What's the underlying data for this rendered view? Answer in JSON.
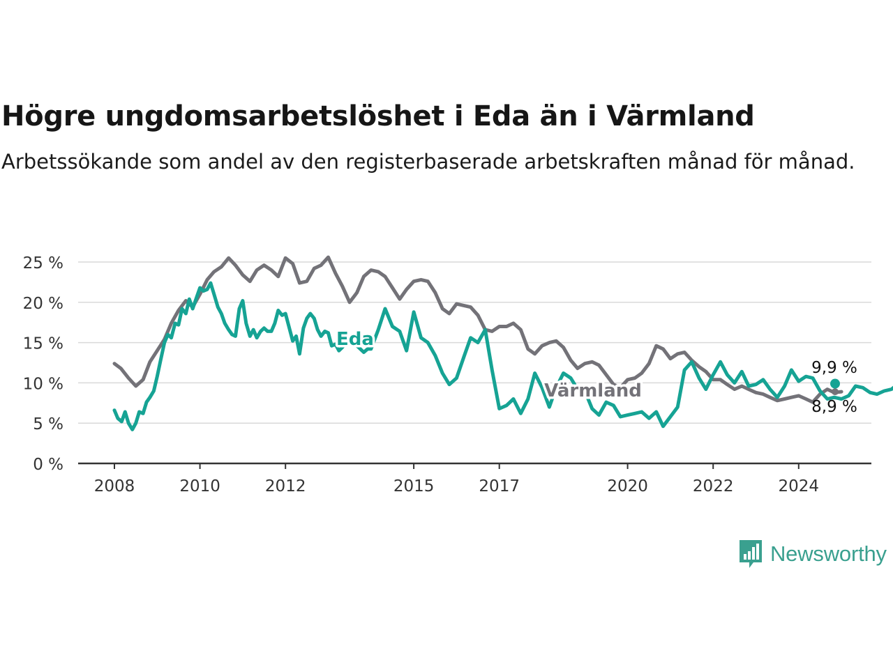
{
  "header": {
    "title": "Högre ungdomsarbetslöshet i Eda än i Värmland",
    "subtitle": "Arbetssökande som andel av den registerbaserade arbetskraften månad för månad."
  },
  "brand": {
    "name": "Newsworthy",
    "color": "#3aa08f",
    "icon": "bar-chart-speech-bubble-icon"
  },
  "chart_data": {
    "type": "line",
    "x_ticks": [
      {
        "label": "2008",
        "value": 2008.0
      },
      {
        "label": "2010",
        "value": 2010.0
      },
      {
        "label": "2012",
        "value": 2012.0
      },
      {
        "label": "2015",
        "value": 2015.0
      },
      {
        "label": "2017",
        "value": 2017.0
      },
      {
        "label": "2020",
        "value": 2020.0
      },
      {
        "label": "2022",
        "value": 2022.0
      },
      {
        "label": "2024",
        "value": 2024.0
      }
    ],
    "y_ticks": [
      {
        "label": "0 %",
        "value": 0
      },
      {
        "label": "5 %",
        "value": 5
      },
      {
        "label": "10 %",
        "value": 10
      },
      {
        "label": "15 %",
        "value": 15
      },
      {
        "label": "20 %",
        "value": 20
      },
      {
        "label": "25 %",
        "value": 25
      }
    ],
    "xlim": [
      2007.2,
      2025.7
    ],
    "ylim": [
      0,
      25
    ],
    "grid": true,
    "series": [
      {
        "name": "Värmland",
        "color": "#737278",
        "end_label": "8,9 %",
        "points": [
          [
            2008.0,
            12.4
          ],
          [
            2008.15,
            11.8
          ],
          [
            2008.33,
            10.6
          ],
          [
            2008.5,
            9.6
          ],
          [
            2008.67,
            10.4
          ],
          [
            2008.83,
            12.6
          ],
          [
            2009.0,
            14.0
          ],
          [
            2009.17,
            15.4
          ],
          [
            2009.33,
            17.4
          ],
          [
            2009.5,
            19.0
          ],
          [
            2009.67,
            20.2
          ],
          [
            2009.83,
            19.4
          ],
          [
            2010.0,
            21.0
          ],
          [
            2010.17,
            22.8
          ],
          [
            2010.33,
            23.8
          ],
          [
            2010.5,
            24.4
          ],
          [
            2010.67,
            25.5
          ],
          [
            2010.83,
            24.6
          ],
          [
            2011.0,
            23.4
          ],
          [
            2011.17,
            22.6
          ],
          [
            2011.33,
            24.0
          ],
          [
            2011.5,
            24.6
          ],
          [
            2011.67,
            24.0
          ],
          [
            2011.83,
            23.2
          ],
          [
            2012.0,
            25.5
          ],
          [
            2012.17,
            24.8
          ],
          [
            2012.33,
            22.4
          ],
          [
            2012.5,
            22.6
          ],
          [
            2012.67,
            24.2
          ],
          [
            2012.83,
            24.6
          ],
          [
            2013.0,
            25.6
          ],
          [
            2013.17,
            23.6
          ],
          [
            2013.33,
            22.0
          ],
          [
            2013.5,
            20.0
          ],
          [
            2013.67,
            21.2
          ],
          [
            2013.83,
            23.2
          ],
          [
            2014.0,
            24.0
          ],
          [
            2014.17,
            23.8
          ],
          [
            2014.33,
            23.2
          ],
          [
            2014.5,
            21.8
          ],
          [
            2014.67,
            20.4
          ],
          [
            2014.83,
            21.6
          ],
          [
            2015.0,
            22.6
          ],
          [
            2015.17,
            22.8
          ],
          [
            2015.33,
            22.6
          ],
          [
            2015.5,
            21.2
          ],
          [
            2015.67,
            19.2
          ],
          [
            2015.83,
            18.6
          ],
          [
            2016.0,
            19.8
          ],
          [
            2016.17,
            19.6
          ],
          [
            2016.33,
            19.4
          ],
          [
            2016.5,
            18.4
          ],
          [
            2016.67,
            16.6
          ],
          [
            2016.83,
            16.4
          ],
          [
            2017.0,
            17.0
          ],
          [
            2017.17,
            17.0
          ],
          [
            2017.33,
            17.4
          ],
          [
            2017.5,
            16.6
          ],
          [
            2017.67,
            14.2
          ],
          [
            2017.83,
            13.6
          ],
          [
            2018.0,
            14.6
          ],
          [
            2018.17,
            15.0
          ],
          [
            2018.33,
            15.2
          ],
          [
            2018.5,
            14.4
          ],
          [
            2018.67,
            12.8
          ],
          [
            2018.83,
            11.8
          ],
          [
            2019.0,
            12.4
          ],
          [
            2019.17,
            12.6
          ],
          [
            2019.33,
            12.2
          ],
          [
            2019.5,
            11.0
          ],
          [
            2019.67,
            9.8
          ],
          [
            2019.83,
            9.4
          ],
          [
            2020.0,
            10.4
          ],
          [
            2020.17,
            10.6
          ],
          [
            2020.33,
            11.2
          ],
          [
            2020.5,
            12.4
          ],
          [
            2020.67,
            14.6
          ],
          [
            2020.83,
            14.2
          ],
          [
            2021.0,
            13.0
          ],
          [
            2021.17,
            13.6
          ],
          [
            2021.33,
            13.8
          ],
          [
            2021.5,
            12.8
          ],
          [
            2021.67,
            12.0
          ],
          [
            2021.83,
            11.4
          ],
          [
            2022.0,
            10.4
          ],
          [
            2022.17,
            10.4
          ],
          [
            2022.33,
            9.8
          ],
          [
            2022.5,
            9.2
          ],
          [
            2022.67,
            9.6
          ],
          [
            2022.83,
            9.2
          ],
          [
            2023.0,
            8.8
          ],
          [
            2023.17,
            8.6
          ],
          [
            2023.33,
            8.2
          ],
          [
            2023.5,
            7.8
          ],
          [
            2023.67,
            8.0
          ],
          [
            2023.83,
            8.2
          ],
          [
            2024.0,
            8.4
          ],
          [
            2024.17,
            8.0
          ],
          [
            2024.33,
            7.6
          ],
          [
            2024.5,
            8.6
          ],
          [
            2024.67,
            9.2
          ],
          [
            2024.83,
            8.8
          ],
          [
            2025.0,
            8.9
          ]
        ]
      },
      {
        "name": "Eda",
        "color": "#16a394",
        "end_label": "9,9 %",
        "points": [
          [
            2008.0,
            6.6
          ],
          [
            2008.08,
            5.6
          ],
          [
            2008.17,
            5.2
          ],
          [
            2008.25,
            6.4
          ],
          [
            2008.33,
            5.0
          ],
          [
            2008.42,
            4.2
          ],
          [
            2008.5,
            5.0
          ],
          [
            2008.58,
            6.4
          ],
          [
            2008.67,
            6.2
          ],
          [
            2008.75,
            7.6
          ],
          [
            2008.83,
            8.2
          ],
          [
            2008.92,
            9.0
          ],
          [
            2009.0,
            10.8
          ],
          [
            2009.08,
            12.8
          ],
          [
            2009.17,
            15.0
          ],
          [
            2009.25,
            16.0
          ],
          [
            2009.33,
            15.6
          ],
          [
            2009.42,
            17.4
          ],
          [
            2009.5,
            17.2
          ],
          [
            2009.58,
            19.2
          ],
          [
            2009.67,
            18.6
          ],
          [
            2009.75,
            20.4
          ],
          [
            2009.83,
            19.2
          ],
          [
            2009.92,
            20.6
          ],
          [
            2010.0,
            21.8
          ],
          [
            2010.08,
            21.4
          ],
          [
            2010.17,
            21.6
          ],
          [
            2010.25,
            22.4
          ],
          [
            2010.33,
            21.0
          ],
          [
            2010.42,
            19.4
          ],
          [
            2010.5,
            18.6
          ],
          [
            2010.58,
            17.4
          ],
          [
            2010.67,
            16.6
          ],
          [
            2010.75,
            16.0
          ],
          [
            2010.83,
            15.8
          ],
          [
            2010.92,
            19.2
          ],
          [
            2011.0,
            20.2
          ],
          [
            2011.08,
            17.4
          ],
          [
            2011.17,
            15.8
          ],
          [
            2011.25,
            16.6
          ],
          [
            2011.33,
            15.6
          ],
          [
            2011.42,
            16.4
          ],
          [
            2011.5,
            16.8
          ],
          [
            2011.58,
            16.4
          ],
          [
            2011.67,
            16.4
          ],
          [
            2011.75,
            17.4
          ],
          [
            2011.83,
            19.0
          ],
          [
            2011.92,
            18.4
          ],
          [
            2012.0,
            18.6
          ],
          [
            2012.08,
            17.0
          ],
          [
            2012.17,
            15.2
          ],
          [
            2012.25,
            15.8
          ],
          [
            2012.33,
            13.6
          ],
          [
            2012.42,
            16.8
          ],
          [
            2012.5,
            18.0
          ],
          [
            2012.58,
            18.6
          ],
          [
            2012.67,
            18.0
          ],
          [
            2012.75,
            16.6
          ],
          [
            2012.83,
            15.8
          ],
          [
            2012.92,
            16.4
          ],
          [
            2013.0,
            16.2
          ],
          [
            2013.08,
            14.6
          ],
          [
            2013.17,
            14.8
          ],
          [
            2013.25,
            14.0
          ],
          [
            2013.33,
            14.4
          ],
          [
            2013.42,
            15.0
          ],
          [
            2013.5,
            14.8
          ],
          [
            2013.58,
            15.4
          ],
          [
            2013.67,
            14.6
          ],
          [
            2013.75,
            14.2
          ],
          [
            2013.83,
            13.8
          ],
          [
            2013.92,
            14.2
          ],
          [
            2014.0,
            14.2
          ],
          [
            2014.17,
            16.6
          ],
          [
            2014.33,
            19.2
          ],
          [
            2014.5,
            17.0
          ],
          [
            2014.67,
            16.4
          ],
          [
            2014.83,
            14.0
          ],
          [
            2015.0,
            18.8
          ],
          [
            2015.17,
            15.6
          ],
          [
            2015.33,
            15.0
          ],
          [
            2015.5,
            13.4
          ],
          [
            2015.67,
            11.2
          ],
          [
            2015.83,
            9.8
          ],
          [
            2016.0,
            10.6
          ],
          [
            2016.17,
            13.2
          ],
          [
            2016.33,
            15.6
          ],
          [
            2016.5,
            15.0
          ],
          [
            2016.67,
            16.6
          ],
          [
            2016.83,
            11.6
          ],
          [
            2017.0,
            6.8
          ],
          [
            2017.17,
            7.2
          ],
          [
            2017.33,
            8.0
          ],
          [
            2017.5,
            6.2
          ],
          [
            2017.67,
            8.0
          ],
          [
            2017.83,
            11.2
          ],
          [
            2018.0,
            9.4
          ],
          [
            2018.17,
            7.0
          ],
          [
            2018.33,
            9.4
          ],
          [
            2018.5,
            11.2
          ],
          [
            2018.67,
            10.6
          ],
          [
            2018.83,
            9.2
          ],
          [
            2019.0,
            9.0
          ],
          [
            2019.17,
            6.8
          ],
          [
            2019.33,
            6.0
          ],
          [
            2019.5,
            7.6
          ],
          [
            2019.67,
            7.2
          ],
          [
            2019.83,
            5.8
          ],
          [
            2020.0,
            6.0
          ],
          [
            2020.17,
            6.2
          ],
          [
            2020.33,
            6.4
          ],
          [
            2020.5,
            5.6
          ],
          [
            2020.67,
            6.4
          ],
          [
            2020.83,
            4.6
          ],
          [
            2021.0,
            5.8
          ],
          [
            2021.17,
            7.0
          ],
          [
            2021.33,
            11.6
          ],
          [
            2021.5,
            12.6
          ],
          [
            2021.67,
            10.6
          ],
          [
            2021.83,
            9.2
          ],
          [
            2022.0,
            11.0
          ],
          [
            2022.17,
            12.6
          ],
          [
            2022.33,
            11.0
          ],
          [
            2022.5,
            10.0
          ],
          [
            2022.67,
            11.4
          ],
          [
            2022.83,
            9.6
          ],
          [
            2023.0,
            9.8
          ],
          [
            2023.17,
            10.4
          ],
          [
            2023.33,
            9.2
          ],
          [
            2023.5,
            8.2
          ],
          [
            2023.67,
            9.6
          ],
          [
            2023.83,
            11.6
          ],
          [
            2024.0,
            10.2
          ],
          [
            2024.17,
            10.8
          ],
          [
            2024.33,
            10.6
          ],
          [
            2024.5,
            9.0
          ],
          [
            2024.67,
            8.0
          ],
          [
            2024.83,
            8.2
          ],
          [
            2025.0,
            8.0
          ],
          [
            2025.17,
            8.4
          ],
          [
            2025.33,
            9.6
          ],
          [
            2025.5,
            9.4
          ],
          [
            2025.67,
            8.8
          ],
          [
            2025.83,
            8.6
          ],
          [
            2026.0,
            9.0
          ],
          [
            2026.17,
            9.2
          ],
          [
            2026.33,
            9.9
          ]
        ]
      }
    ],
    "annotations": [
      {
        "text": "Eda",
        "series": "Eda"
      },
      {
        "text": "Värmland",
        "series": "Värmland"
      }
    ]
  }
}
